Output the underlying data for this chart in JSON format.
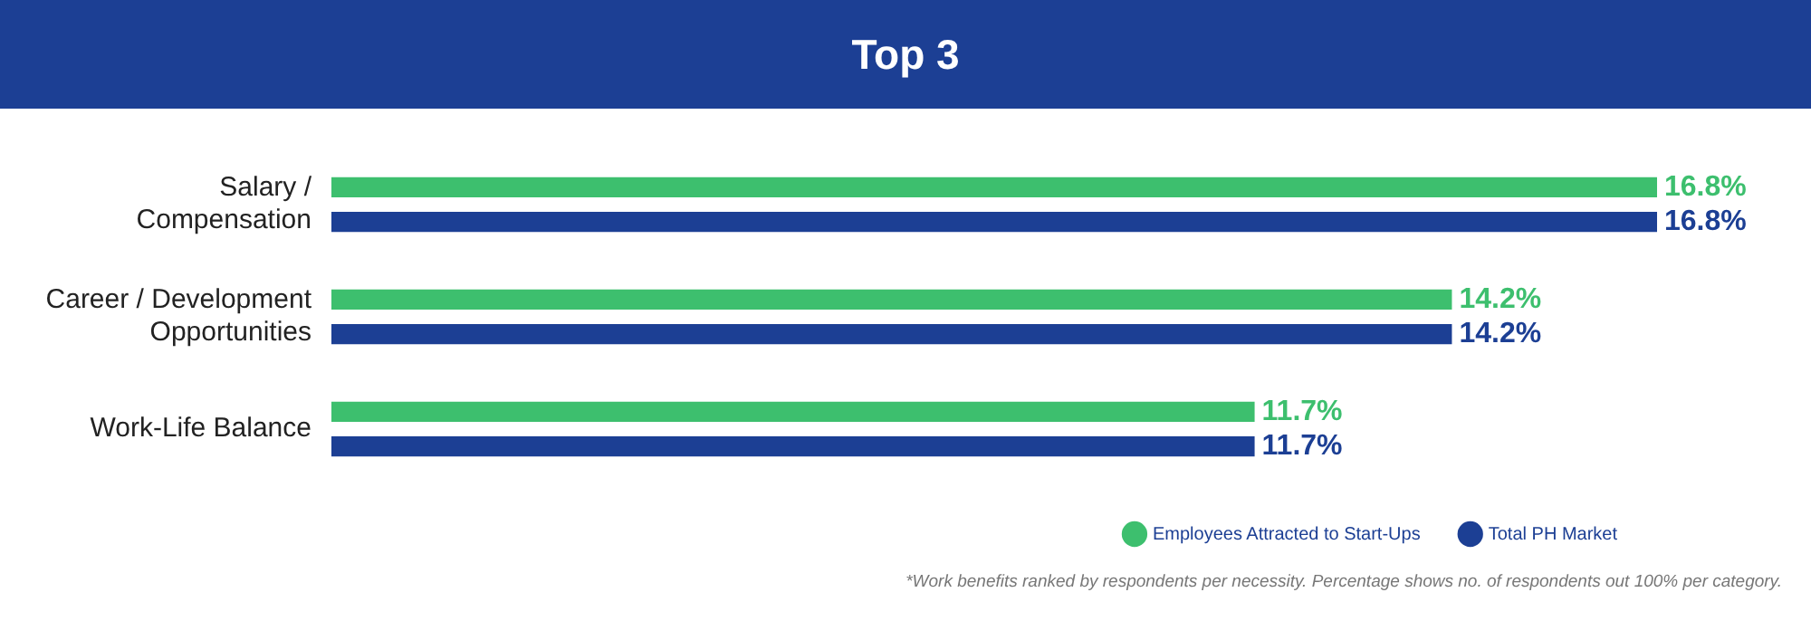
{
  "chart_data": {
    "type": "bar",
    "orientation": "horizontal",
    "title": "Top 3",
    "categories": [
      "Salary / Compensation",
      "Career / Development Opportunities",
      "Work-Life Balance"
    ],
    "series": [
      {
        "name": "Employees Attracted to Start-Ups",
        "color": "#3dbf6e",
        "values": [
          16.8,
          14.2,
          11.7
        ],
        "value_labels": [
          "16.8%",
          "14.2%",
          "11.7%"
        ]
      },
      {
        "name": "Total PH Market",
        "color": "#1c3f94",
        "values": [
          16.8,
          14.2,
          11.7
        ],
        "value_labels": [
          "16.8%",
          "14.2%",
          "11.7%"
        ]
      }
    ],
    "legend": "bottom right",
    "annotations": [
      "*Work benefits ranked by respondents per necessity. Percentage shows no. of respondents out 100% per category."
    ]
  }
}
